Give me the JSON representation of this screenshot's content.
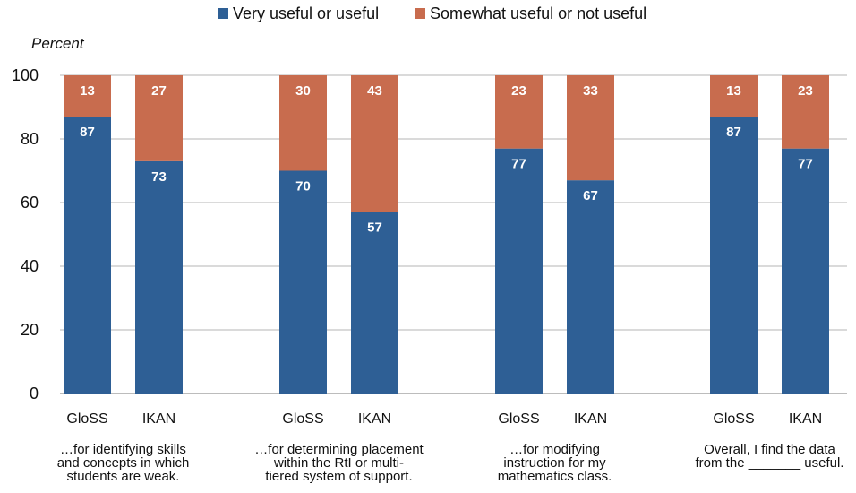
{
  "chart_data": {
    "type": "bar",
    "stacked": true,
    "ylabel": "Percent",
    "ylim": [
      0,
      100
    ],
    "yticks": [
      0,
      20,
      40,
      60,
      80,
      100
    ],
    "grid": true,
    "legend": {
      "placement": "top-center",
      "entries": [
        {
          "name": "Very useful or useful",
          "color": "#2e5f95"
        },
        {
          "name": "Somewhat useful or not useful",
          "color": "#c86c4e"
        }
      ]
    },
    "series": [
      {
        "name": "Very useful or useful",
        "color": "#2e5f95",
        "values": [
          87,
          73,
          70,
          57,
          77,
          67,
          87,
          77
        ]
      },
      {
        "name": "Somewhat useful or not useful",
        "color": "#c86c4e",
        "values": [
          13,
          27,
          30,
          43,
          23,
          33,
          13,
          23
        ]
      }
    ],
    "categories": [
      "GloSS",
      "IKAN",
      "GloSS",
      "IKAN",
      "GloSS",
      "IKAN",
      "GloSS",
      "IKAN"
    ],
    "groups": [
      {
        "lines": [
          "…for identifying skills",
          "and concepts in which",
          "students are weak."
        ]
      },
      {
        "lines": [
          "…for determining placement",
          "within the RtI or multi-",
          "tiered system of support."
        ]
      },
      {
        "lines": [
          "…for modifying",
          "instruction for my",
          "mathematics class."
        ]
      },
      {
        "lines": [
          "Overall, I find the data",
          "from the _______ useful."
        ]
      }
    ]
  }
}
